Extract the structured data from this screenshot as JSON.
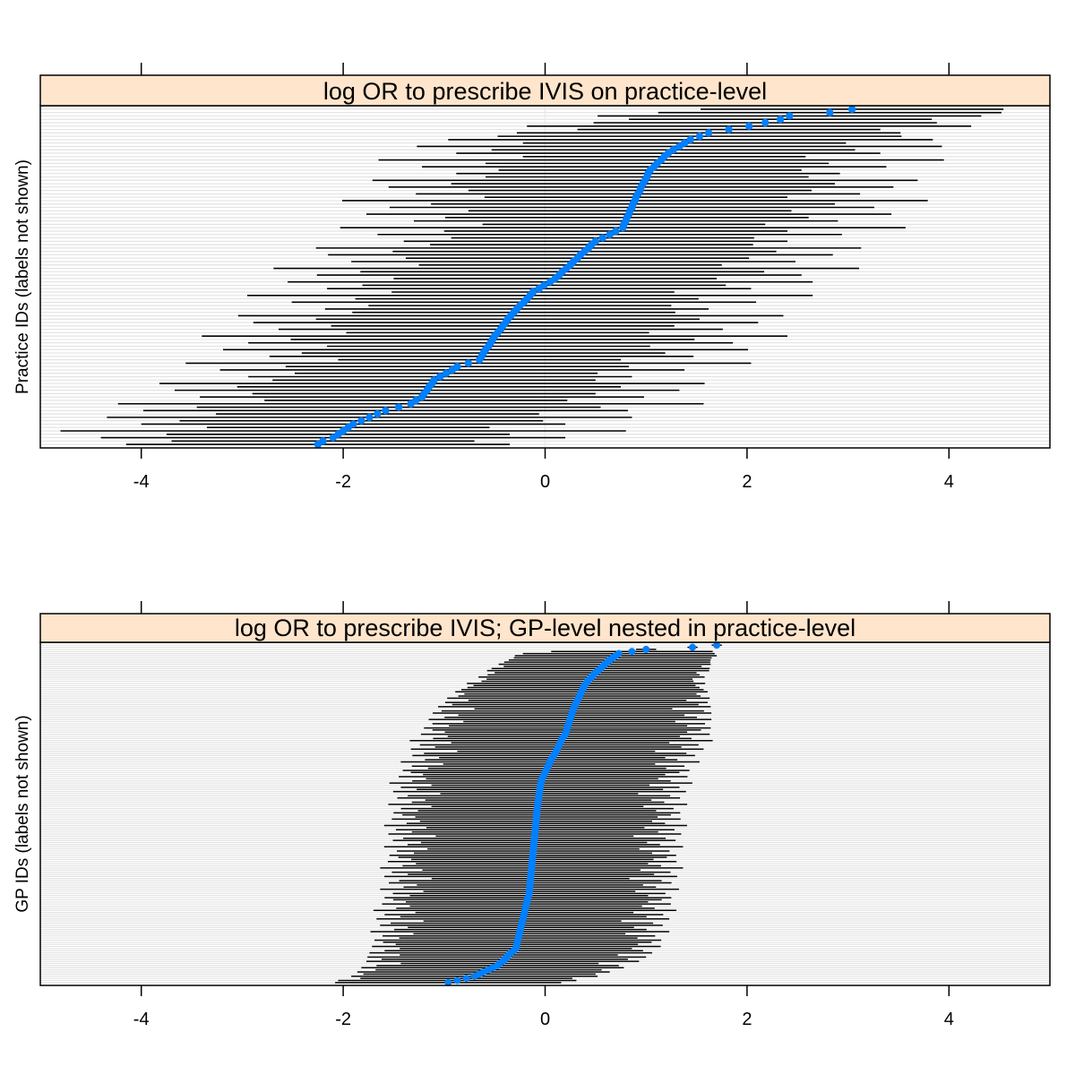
{
  "chart_data": [
    {
      "type": "dotplot-interval",
      "title": "log OR to prescribe IVIS on practice-level",
      "ylabel": "Practice IDs (labels not shown)",
      "xlabel": "",
      "xlim": [
        -5,
        5
      ],
      "xticks": [
        -4,
        -2,
        0,
        2,
        4
      ],
      "xtick_labels": [
        "-4",
        "-2",
        "0",
        "2",
        "4"
      ],
      "grid": "horizontal reference line per row; vertical reference line at 0",
      "point_color": "#0080ff",
      "interval_color": "#000000",
      "strip_color": "#ffe5cc",
      "estimates": [
        -2.25,
        -2.2,
        -2.1,
        -2.05,
        -2.0,
        -1.95,
        -1.9,
        -1.82,
        -1.74,
        -1.66,
        -1.58,
        -1.45,
        -1.33,
        -1.28,
        -1.22,
        -1.2,
        -1.17,
        -1.15,
        -1.12,
        -1.1,
        -1.04,
        -0.98,
        -0.92,
        -0.87,
        -0.76,
        -0.65,
        -0.63,
        -0.61,
        -0.59,
        -0.56,
        -0.54,
        -0.52,
        -0.5,
        -0.47,
        -0.44,
        -0.42,
        -0.39,
        -0.37,
        -0.34,
        -0.31,
        -0.28,
        -0.25,
        -0.21,
        -0.18,
        -0.15,
        -0.12,
        -0.06,
        -0.01,
        0.05,
        0.1,
        0.14,
        0.17,
        0.21,
        0.25,
        0.28,
        0.32,
        0.35,
        0.39,
        0.43,
        0.46,
        0.5,
        0.57,
        0.64,
        0.7,
        0.77,
        0.78,
        0.8,
        0.81,
        0.83,
        0.84,
        0.86,
        0.87,
        0.89,
        0.9,
        0.92,
        0.94,
        0.95,
        0.97,
        0.99,
        1.01,
        1.02,
        1.04,
        1.08,
        1.11,
        1.15,
        1.18,
        1.22,
        1.27,
        1.33,
        1.38,
        1.44,
        1.53,
        1.62,
        1.82,
        2.02,
        2.18,
        2.33,
        2.42,
        2.82,
        3.04
      ],
      "interval_halfwidths": [
        1.9,
        1.5,
        2.3,
        1.7,
        2.8,
        1.4,
        2.1,
        1.8,
        2.6,
        1.6,
        2.4,
        2.0,
        2.9,
        1.5,
        2.2,
        1.7,
        2.5,
        1.9,
        2.7,
        1.6,
        1.9,
        1.5,
        2.3,
        1.7,
        2.8,
        1.4,
        2.1,
        1.8,
        2.6,
        1.6,
        2.4,
        2.0,
        2.9,
        1.5,
        2.2,
        1.7,
        2.5,
        1.9,
        2.7,
        1.6,
        1.9,
        1.5,
        2.3,
        1.7,
        2.8,
        1.4,
        2.1,
        1.8,
        2.6,
        1.6,
        2.4,
        2.0,
        2.9,
        1.5,
        2.2,
        1.7,
        2.5,
        1.9,
        2.7,
        1.6,
        1.9,
        1.5,
        2.3,
        1.7,
        2.8,
        1.4,
        2.1,
        1.8,
        2.6,
        1.6,
        2.4,
        2.0,
        2.9,
        1.5,
        2.2,
        1.7,
        2.5,
        1.9,
        2.7,
        1.6,
        1.9,
        1.5,
        2.3,
        1.7,
        2.8,
        1.4,
        2.1,
        1.8,
        2.6,
        1.6,
        2.4,
        2.0,
        1.9,
        1.5,
        2.2,
        1.7,
        1.5,
        1.9,
        1.7,
        1.5
      ]
    },
    {
      "type": "dotplot-interval",
      "title": "log OR to prescribe IVIS; GP-level nested in practice-level",
      "ylabel": "GP IDs (labels not shown)",
      "xlabel": "",
      "xlim": [
        -5,
        5
      ],
      "xticks": [
        -4,
        -2,
        0,
        2,
        4
      ],
      "xtick_labels": [
        "-4",
        "-2",
        "0",
        "2",
        "4"
      ],
      "grid": "horizontal reference line per row",
      "point_color": "#0080ff",
      "interval_color": "#000000",
      "strip_color": "#ffe5cc",
      "estimates": [
        -0.96,
        -0.87,
        -0.78,
        -0.7,
        -0.65,
        -0.61,
        -0.56,
        -0.52,
        -0.47,
        -0.45,
        -0.42,
        -0.4,
        -0.38,
        -0.36,
        -0.34,
        -0.31,
        -0.29,
        -0.285,
        -0.28,
        -0.275,
        -0.27,
        -0.265,
        -0.26,
        -0.255,
        -0.25,
        -0.245,
        -0.24,
        -0.235,
        -0.23,
        -0.225,
        -0.22,
        -0.215,
        -0.21,
        -0.205,
        -0.2,
        -0.195,
        -0.19,
        -0.185,
        -0.18,
        -0.175,
        -0.17,
        -0.16,
        -0.158,
        -0.156,
        -0.154,
        -0.152,
        -0.15,
        -0.148,
        -0.146,
        -0.144,
        -0.142,
        -0.14,
        -0.138,
        -0.136,
        -0.134,
        -0.132,
        -0.13,
        -0.128,
        -0.126,
        -0.124,
        -0.122,
        -0.12,
        -0.118,
        -0.116,
        -0.114,
        -0.112,
        -0.11,
        -0.108,
        -0.106,
        -0.104,
        -0.102,
        -0.1,
        -0.098,
        -0.096,
        -0.094,
        -0.092,
        -0.09,
        -0.088,
        -0.086,
        -0.084,
        -0.082,
        -0.08,
        -0.078,
        -0.076,
        -0.073,
        -0.07,
        -0.067,
        -0.064,
        -0.061,
        -0.058,
        -0.055,
        -0.052,
        -0.049,
        -0.046,
        -0.042,
        -0.036,
        -0.03,
        -0.02,
        -0.01,
        0.0,
        0.01,
        0.02,
        0.03,
        0.04,
        0.05,
        0.06,
        0.07,
        0.085,
        0.1,
        0.11,
        0.12,
        0.13,
        0.14,
        0.15,
        0.16,
        0.17,
        0.185,
        0.2,
        0.207,
        0.214,
        0.22,
        0.227,
        0.234,
        0.24,
        0.247,
        0.254,
        0.26,
        0.267,
        0.274,
        0.28,
        0.29,
        0.3,
        0.31,
        0.32,
        0.33,
        0.34,
        0.35,
        0.36,
        0.37,
        0.38,
        0.39,
        0.405,
        0.42,
        0.44,
        0.46,
        0.48,
        0.5,
        0.525,
        0.55,
        0.57,
        0.59,
        0.615,
        0.64,
        0.67,
        0.7,
        0.73,
        0.86,
        1.0,
        1.46,
        1.7
      ],
      "interval_halfwidths": [
        1.12,
        1.18,
        1.05,
        1.22,
        1.15,
        1.25,
        1.12,
        1.3,
        1.2,
        0.98,
        1.35,
        1.22,
        1.38,
        1.08,
        1.4,
        1.28,
        1.15,
        1.43,
        1.2,
        1.33,
        1.42,
        1.18,
        1.35,
        1.05,
        1.48,
        1.25,
        1.12,
        1.4,
        1.3,
        0.98,
        1.45,
        1.22,
        1.38,
        1.08,
        1.5,
        1.28,
        1.15,
        1.43,
        1.2,
        1.33,
        1.42,
        1.18,
        1.35,
        1.05,
        1.48,
        1.25,
        1.12,
        1.4,
        1.3,
        0.98,
        1.45,
        1.22,
        1.38,
        1.08,
        1.5,
        1.28,
        1.15,
        1.43,
        1.2,
        1.33,
        1.42,
        1.18,
        1.35,
        1.05,
        1.48,
        1.25,
        1.12,
        1.4,
        1.3,
        0.98,
        1.45,
        1.22,
        1.38,
        1.08,
        1.5,
        1.28,
        1.15,
        1.43,
        1.2,
        1.33,
        1.42,
        1.18,
        1.35,
        1.05,
        1.48,
        1.25,
        1.12,
        1.4,
        1.3,
        0.98,
        1.45,
        1.22,
        1.38,
        1.08,
        1.5,
        1.28,
        1.15,
        1.43,
        1.2,
        1.33,
        1.42,
        1.18,
        1.35,
        1.05,
        1.48,
        1.25,
        1.12,
        1.4,
        1.3,
        0.98,
        1.45,
        1.22,
        1.38,
        1.08,
        1.5,
        1.28,
        1.15,
        1.43,
        1.2,
        1.33,
        1.42,
        1.18,
        1.35,
        1.05,
        1.4,
        1.25,
        1.12,
        1.38,
        1.3,
        0.98,
        1.35,
        1.22,
        1.3,
        1.08,
        1.3,
        1.2,
        1.15,
        1.25,
        1.2,
        1.15,
        1.1,
        1.18,
        1.05,
        1.02,
        1.12,
        1.05,
        1.0,
        1.1,
        1.08,
        0.98,
        1.05,
        1.02,
        1.0,
        0.98,
        1.0,
        0.95,
        0.8,
        0.1,
        0.05,
        0.05
      ]
    }
  ]
}
